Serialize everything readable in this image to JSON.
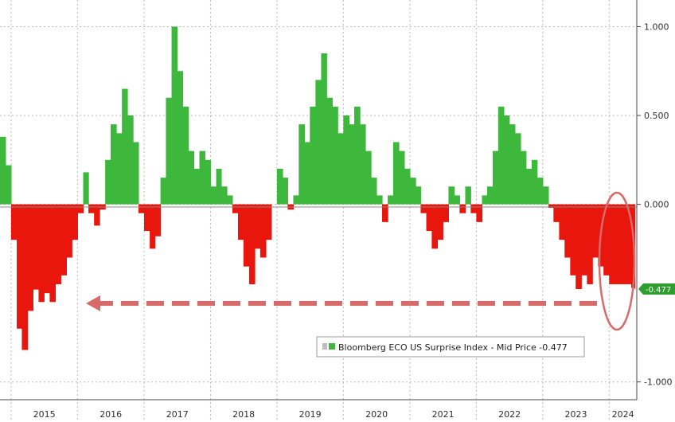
{
  "chart_data": {
    "type": "area",
    "series": [
      {
        "name": "Bloomberg ECO US Surprise Index - Mid Price",
        "last_value": "-0.477",
        "x": [
          "2014-11-01",
          "2014-12-01",
          "2015-01-01",
          "2015-02-01",
          "2015-03-01",
          "2015-04-01",
          "2015-05-01",
          "2015-06-01",
          "2015-07-01",
          "2015-08-01",
          "2015-09-01",
          "2015-10-01",
          "2015-11-01",
          "2015-12-01",
          "2016-01-01",
          "2016-02-01",
          "2016-03-01",
          "2016-04-01",
          "2016-05-01",
          "2016-06-01",
          "2016-07-01",
          "2016-08-01",
          "2016-09-01",
          "2016-10-01",
          "2016-11-01",
          "2016-12-01",
          "2017-01-01",
          "2017-02-01",
          "2017-03-01",
          "2017-04-01",
          "2017-05-01",
          "2017-06-01",
          "2017-07-01",
          "2017-08-01",
          "2017-09-01",
          "2017-10-01",
          "2017-11-01",
          "2017-12-01",
          "2018-01-01",
          "2018-02-01",
          "2018-03-01",
          "2018-04-01",
          "2018-05-01",
          "2018-06-01",
          "2018-07-01",
          "2018-08-01",
          "2018-09-01",
          "2018-10-01",
          "2018-11-01",
          "2018-12-01",
          "2019-01-01",
          "2019-02-01",
          "2019-03-01",
          "2019-04-01",
          "2019-05-01",
          "2019-06-01",
          "2019-07-01",
          "2019-08-01",
          "2019-09-01",
          "2019-10-01",
          "2019-11-01",
          "2019-12-01",
          "2020-01-01",
          "2020-02-01",
          "2020-03-01",
          "2020-04-01",
          "2020-05-01",
          "2020-06-01",
          "2020-07-01",
          "2020-08-01",
          "2020-09-01",
          "2020-10-01",
          "2020-11-01",
          "2020-12-01",
          "2021-01-01",
          "2021-02-01",
          "2021-03-01",
          "2021-04-01",
          "2021-05-01",
          "2021-06-01",
          "2021-07-01",
          "2021-08-01",
          "2021-09-01",
          "2021-10-01",
          "2021-11-01",
          "2021-12-01",
          "2022-01-01",
          "2022-02-01",
          "2022-03-01",
          "2022-04-01",
          "2022-05-01",
          "2022-06-01",
          "2022-07-01",
          "2022-08-01",
          "2022-09-01",
          "2022-10-01",
          "2022-11-01",
          "2022-12-01",
          "2023-01-01",
          "2023-02-01",
          "2023-03-01",
          "2023-04-01",
          "2023-05-01",
          "2023-06-01",
          "2023-07-01",
          "2023-08-01",
          "2023-09-01",
          "2023-10-01",
          "2023-11-01",
          "2023-12-01",
          "2024-01-01",
          "2024-02-01",
          "2024-03-01",
          "2024-04-01",
          "2024-05-01",
          "2024-05-20"
        ],
        "values": [
          0.38,
          0.22,
          -0.2,
          -0.7,
          -0.82,
          -0.6,
          -0.48,
          -0.55,
          -0.5,
          -0.55,
          -0.45,
          -0.4,
          -0.3,
          -0.2,
          -0.05,
          0.18,
          -0.05,
          -0.12,
          -0.03,
          0.25,
          0.45,
          0.4,
          0.65,
          0.5,
          0.35,
          -0.05,
          -0.15,
          -0.25,
          -0.18,
          0.15,
          0.6,
          1.0,
          0.75,
          0.55,
          0.3,
          0.2,
          0.3,
          0.25,
          0.1,
          0.2,
          0.1,
          0.05,
          -0.05,
          -0.2,
          -0.35,
          -0.45,
          -0.25,
          -0.3,
          -0.2,
          0.0,
          0.2,
          0.15,
          -0.03,
          0.05,
          0.45,
          0.35,
          0.55,
          0.7,
          0.85,
          0.6,
          0.55,
          0.4,
          0.5,
          0.45,
          0.55,
          0.45,
          0.3,
          0.15,
          0.05,
          -0.1,
          0.05,
          0.35,
          0.3,
          0.2,
          0.15,
          0.1,
          -0.05,
          -0.15,
          -0.25,
          -0.2,
          -0.1,
          0.1,
          0.05,
          -0.05,
          0.1,
          -0.05,
          -0.1,
          0.05,
          0.1,
          0.3,
          0.55,
          0.5,
          0.45,
          0.4,
          0.3,
          0.2,
          0.25,
          0.15,
          0.1,
          -0.02,
          -0.1,
          -0.2,
          -0.3,
          -0.4,
          -0.477,
          -0.4,
          -0.45,
          -0.3,
          -0.35,
          -0.4,
          -0.45,
          -0.45,
          -0.45,
          -0.45,
          -0.47,
          -0.477
        ]
      }
    ],
    "y_ticks": [
      "1.000",
      "0.500",
      "0.000",
      "-0.477",
      "-1.000"
    ],
    "x_ticks": [
      "2015",
      "2016",
      "2017",
      "2018",
      "2019",
      "2020",
      "2021",
      "2022",
      "2023",
      "2024"
    ],
    "ylim": [
      -1.1,
      1.15
    ],
    "grid": true,
    "legend": "bottom-right",
    "colors": {
      "positive": "#3db83d",
      "negative": "#e8160c",
      "last_value_bg": "#2f9e2f",
      "annotation": "#d96a6a",
      "grid": "#b8b8b8"
    }
  }
}
